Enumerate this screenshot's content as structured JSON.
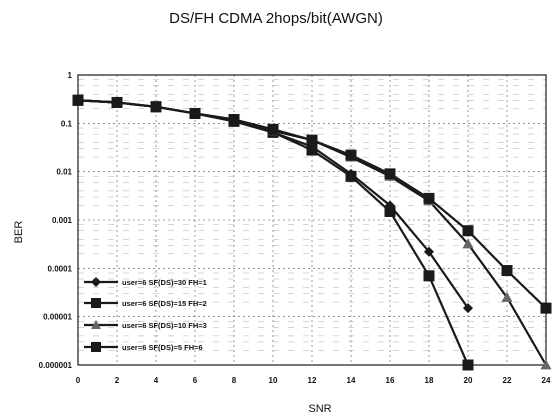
{
  "chart_data": {
    "type": "line",
    "title": "DS/FH CDMA 2hops/bit(AWGN)",
    "xlabel": "SNR",
    "ylabel": "BER",
    "y_scale": "log",
    "xlim": [
      0,
      24
    ],
    "ylim": [
      1e-06,
      1
    ],
    "grid": true,
    "legend_position": "bottom-left",
    "x_ticks": [
      "0",
      "2",
      "4",
      "6",
      "8",
      "10",
      "12",
      "14",
      "16",
      "18",
      "20",
      "22",
      "24"
    ],
    "y_ticks": [
      {
        "value": 1,
        "label": "1"
      },
      {
        "value": 0.1,
        "label": "0.1"
      },
      {
        "value": 0.01,
        "label": "0.01"
      },
      {
        "value": 0.001,
        "label": "0.001"
      },
      {
        "value": 0.0001,
        "label": "0.0001"
      },
      {
        "value": 1e-05,
        "label": "0.00001"
      },
      {
        "value": 1e-06,
        "label": "0.000001"
      }
    ],
    "series": [
      {
        "name": "user=6 SF(DS)=30 FH=1",
        "marker": "diamond",
        "x": [
          0,
          2,
          4,
          6,
          8,
          10,
          12,
          14,
          16,
          18,
          20
        ],
        "y": [
          0.3,
          0.27,
          0.22,
          0.16,
          0.11,
          0.065,
          0.033,
          0.009,
          0.002,
          0.00022,
          1.5e-05
        ]
      },
      {
        "name": "user=6 SF(DS)=15 FH=2",
        "marker": "square",
        "x": [
          0,
          2,
          4,
          6,
          8,
          10,
          12,
          14,
          16,
          18,
          20
        ],
        "y": [
          0.3,
          0.27,
          0.22,
          0.16,
          0.11,
          0.065,
          0.028,
          0.008,
          0.0015,
          7e-05,
          1e-06
        ]
      },
      {
        "name": "user=6 SF(DS)=10 FH=3",
        "marker": "triangle",
        "x": [
          0,
          2,
          4,
          6,
          8,
          10,
          12,
          14,
          16,
          18,
          20,
          22,
          24
        ],
        "y": [
          0.3,
          0.27,
          0.22,
          0.16,
          0.12,
          0.07,
          0.045,
          0.02,
          0.008,
          0.0025,
          0.00032,
          2.5e-05,
          1e-06
        ]
      },
      {
        "name": "user=6 SF(DS)=5 FH=6",
        "marker": "square",
        "x": [
          0,
          2,
          4,
          6,
          8,
          10,
          12,
          14,
          16,
          18,
          20,
          22,
          24
        ],
        "y": [
          0.3,
          0.27,
          0.22,
          0.16,
          0.12,
          0.075,
          0.045,
          0.022,
          0.009,
          0.0028,
          0.0006,
          9e-05,
          1.5e-05
        ]
      }
    ]
  },
  "colors": {
    "line": "#1a1a1a",
    "grid": "#555555",
    "background": "#ffffff"
  }
}
